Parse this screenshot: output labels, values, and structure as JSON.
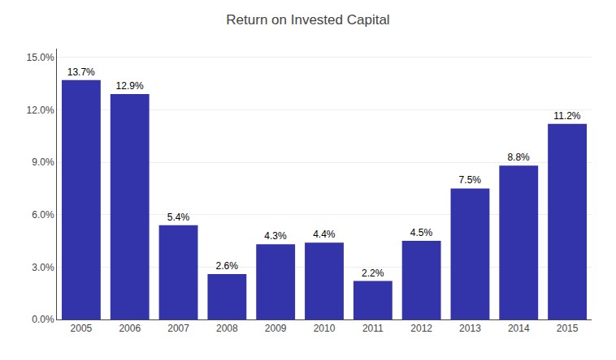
{
  "chart_data": {
    "type": "bar",
    "title": "Return on Invested Capital",
    "categories": [
      "2005",
      "2006",
      "2007",
      "2008",
      "2009",
      "2010",
      "2011",
      "2012",
      "2013",
      "2014",
      "2015"
    ],
    "values": [
      13.7,
      12.9,
      5.4,
      2.6,
      4.3,
      4.4,
      2.2,
      4.5,
      7.5,
      8.8,
      11.2
    ],
    "value_labels": [
      "13.7%",
      "12.9%",
      "5.4%",
      "2.6%",
      "4.3%",
      "4.4%",
      "2.2%",
      "4.5%",
      "7.5%",
      "8.8%",
      "11.2%"
    ],
    "color": "#3333aa",
    "ylim": [
      0,
      15.5
    ],
    "yticks": [
      {
        "value": 0,
        "label": "0.0%"
      },
      {
        "value": 3.0,
        "label": "3.0%"
      },
      {
        "value": 6.0,
        "label": "6.0%"
      },
      {
        "value": 9.0,
        "label": "9.0%"
      },
      {
        "value": 12.0,
        "label": "12.0%"
      },
      {
        "value": 15.0,
        "label": "15.0%"
      }
    ],
    "grid": true,
    "data_labels": true
  }
}
